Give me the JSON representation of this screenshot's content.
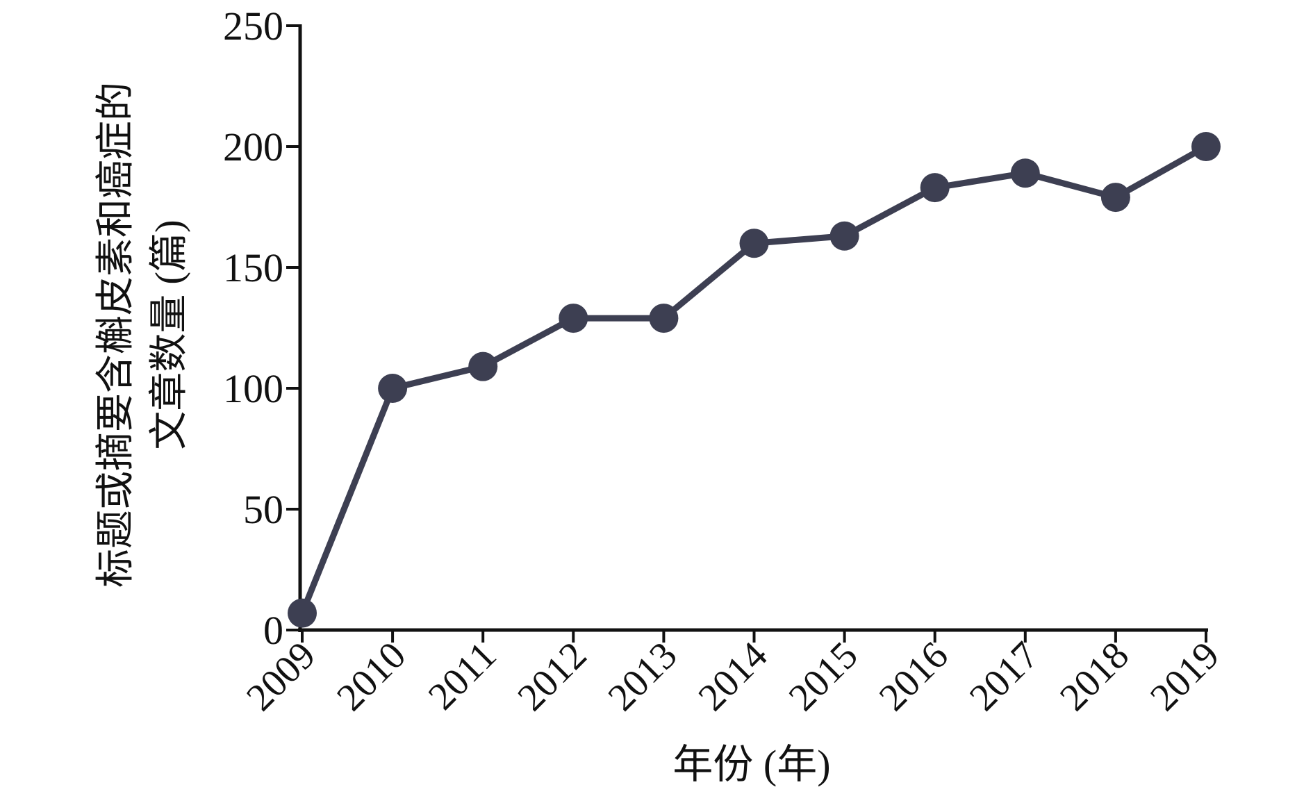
{
  "chart_data": {
    "type": "line",
    "ylabel": [
      "标题或摘要含槲皮素和癌症的",
      "文章数量 (篇)"
    ],
    "xlabel": "年份 (年)",
    "categories": [
      "2009",
      "2010",
      "2011",
      "2012",
      "2013",
      "2014",
      "2015",
      "2016",
      "2017",
      "2018",
      "2019"
    ],
    "series": [
      {
        "color": "#3d3f52",
        "values": [
          7,
          100,
          109,
          129,
          129,
          160,
          163,
          183,
          189,
          179,
          200
        ]
      }
    ],
    "ylim": [
      0,
      250
    ],
    "yticks": [
      0,
      50,
      100,
      150,
      200,
      250
    ]
  }
}
